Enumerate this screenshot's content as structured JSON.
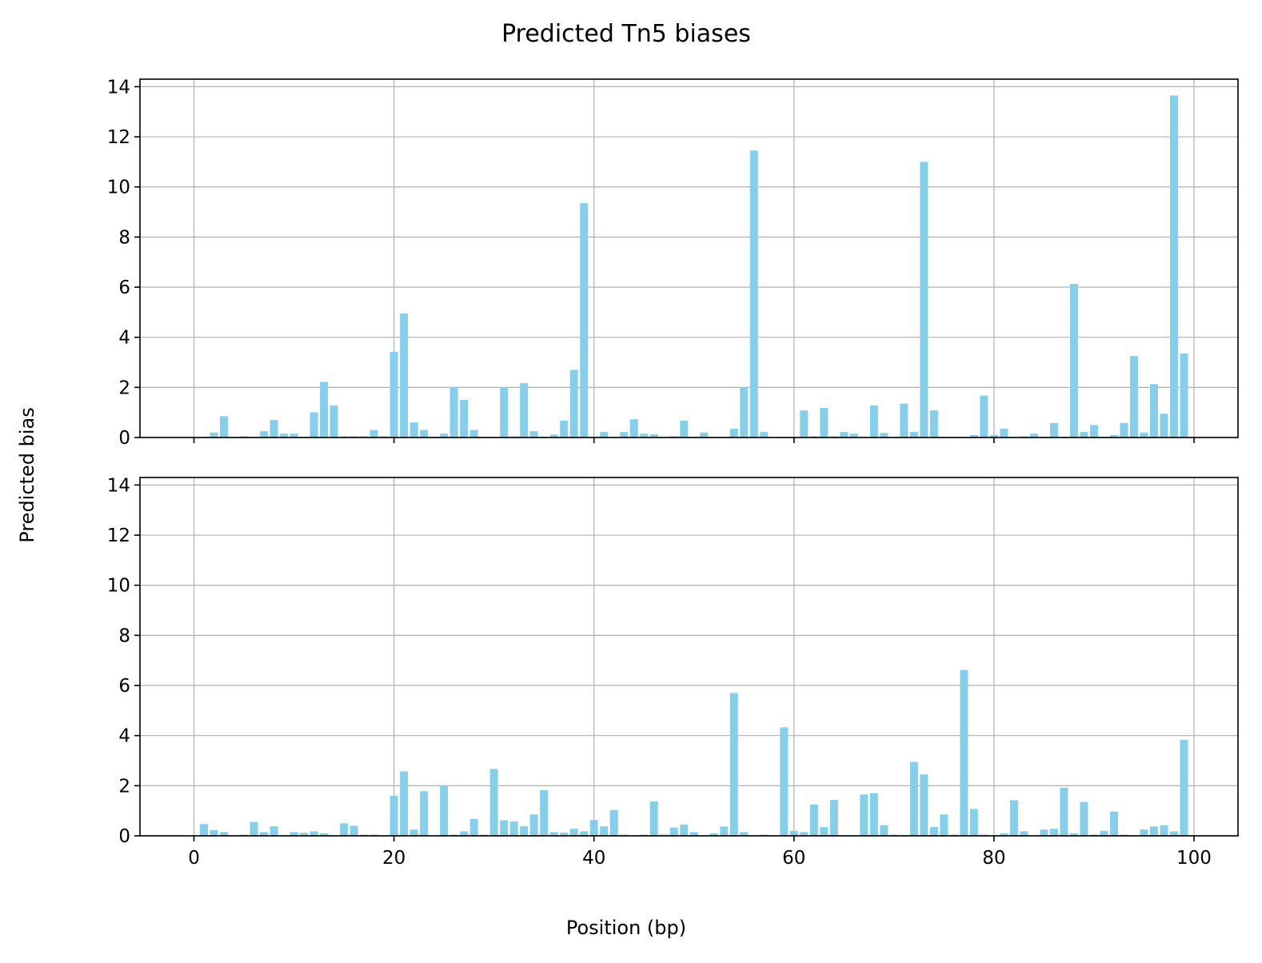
{
  "figure": {
    "title": "Predicted Tn5 biases",
    "xlabel": "Position (bp)",
    "ylabel": "Predicted bias",
    "bar_color": "#87CEEB",
    "grid_color": "#b0b0b0"
  },
  "chart_data": [
    {
      "type": "bar",
      "title": "",
      "xlabel": "",
      "ylabel": "",
      "xlim": [
        -5.4,
        104.4
      ],
      "ylim": [
        0,
        14.3
      ],
      "xticks": [
        0,
        20,
        40,
        60,
        80,
        100
      ],
      "xtick_labels_visible": false,
      "yticks": [
        0,
        2,
        4,
        6,
        8,
        10,
        12,
        14
      ],
      "grid": true,
      "x": [
        0,
        1,
        2,
        3,
        4,
        5,
        6,
        7,
        8,
        9,
        10,
        11,
        12,
        13,
        14,
        15,
        16,
        17,
        18,
        19,
        20,
        21,
        22,
        23,
        24,
        25,
        26,
        27,
        28,
        29,
        30,
        31,
        32,
        33,
        34,
        35,
        36,
        37,
        38,
        39,
        40,
        41,
        42,
        43,
        44,
        45,
        46,
        47,
        48,
        49,
        50,
        51,
        52,
        53,
        54,
        55,
        56,
        57,
        58,
        59,
        60,
        61,
        62,
        63,
        64,
        65,
        66,
        67,
        68,
        69,
        70,
        71,
        72,
        73,
        74,
        75,
        76,
        77,
        78,
        79,
        80,
        81,
        82,
        83,
        84,
        85,
        86,
        87,
        88,
        89,
        90,
        91,
        92,
        93,
        94,
        95,
        96,
        97,
        98,
        99
      ],
      "values": [
        0.02,
        0.03,
        0.2,
        0.85,
        0.02,
        0.05,
        0.03,
        0.25,
        0.7,
        0.15,
        0.15,
        0.03,
        1.0,
        2.22,
        1.28,
        0.05,
        0.05,
        0.05,
        0.3,
        0.05,
        3.42,
        4.95,
        0.6,
        0.3,
        0.03,
        0.15,
        2.0,
        1.5,
        0.3,
        0.03,
        0.03,
        2.0,
        0.05,
        2.17,
        0.25,
        0.03,
        0.12,
        0.67,
        2.7,
        9.35,
        0.03,
        0.22,
        0.03,
        0.22,
        0.73,
        0.15,
        0.13,
        0.03,
        0.05,
        0.67,
        0.03,
        0.2,
        0.03,
        0.03,
        0.35,
        2.0,
        11.45,
        0.22,
        0.03,
        0.03,
        0.03,
        1.08,
        0.05,
        1.18,
        0.05,
        0.22,
        0.15,
        0.03,
        1.28,
        0.18,
        0.03,
        1.35,
        0.22,
        11.0,
        1.08,
        0.03,
        0.03,
        0.03,
        0.1,
        1.67,
        0.1,
        0.35,
        0.03,
        0.05,
        0.15,
        0.03,
        0.58,
        0.03,
        6.13,
        0.22,
        0.5,
        0.03,
        0.1,
        0.58,
        3.25,
        0.2,
        2.13,
        0.95,
        13.65,
        3.35
      ]
    },
    {
      "type": "bar",
      "title": "",
      "xlabel": "Position (bp)",
      "ylabel": "",
      "xlim": [
        -5.4,
        104.4
      ],
      "ylim": [
        0,
        14.3
      ],
      "xticks": [
        0,
        20,
        40,
        60,
        80,
        100
      ],
      "xtick_labels_visible": true,
      "yticks": [
        0,
        2,
        4,
        6,
        8,
        10,
        12,
        14
      ],
      "grid": true,
      "x": [
        0,
        1,
        2,
        3,
        4,
        5,
        6,
        7,
        8,
        9,
        10,
        11,
        12,
        13,
        14,
        15,
        16,
        17,
        18,
        19,
        20,
        21,
        22,
        23,
        24,
        25,
        26,
        27,
        28,
        29,
        30,
        31,
        32,
        33,
        34,
        35,
        36,
        37,
        38,
        39,
        40,
        41,
        42,
        43,
        44,
        45,
        46,
        47,
        48,
        49,
        50,
        51,
        52,
        53,
        54,
        55,
        56,
        57,
        58,
        59,
        60,
        61,
        62,
        63,
        64,
        65,
        66,
        67,
        68,
        69,
        70,
        71,
        72,
        73,
        74,
        75,
        76,
        77,
        78,
        79,
        80,
        81,
        82,
        83,
        84,
        85,
        86,
        87,
        88,
        89,
        90,
        91,
        92,
        93,
        94,
        95,
        96,
        97,
        98,
        99
      ],
      "values": [
        0.02,
        0.47,
        0.23,
        0.15,
        0.03,
        0.05,
        0.55,
        0.15,
        0.38,
        0.03,
        0.15,
        0.12,
        0.18,
        0.1,
        0.03,
        0.5,
        0.4,
        0.05,
        0.05,
        0.03,
        1.6,
        2.57,
        0.25,
        1.78,
        0.03,
        2.0,
        0.05,
        0.18,
        0.67,
        0.05,
        2.67,
        0.62,
        0.57,
        0.38,
        0.85,
        1.82,
        0.15,
        0.13,
        0.28,
        0.18,
        0.63,
        0.38,
        1.03,
        0.05,
        0.03,
        0.05,
        1.37,
        0.05,
        0.33,
        0.45,
        0.15,
        0.03,
        0.1,
        0.37,
        5.7,
        0.15,
        0.03,
        0.05,
        0.03,
        4.33,
        0.2,
        0.15,
        1.25,
        0.35,
        1.43,
        0.03,
        0.03,
        1.65,
        1.7,
        0.42,
        0.05,
        0.03,
        2.95,
        2.45,
        0.35,
        0.85,
        0.05,
        6.62,
        1.07,
        0.05,
        0.03,
        0.1,
        1.42,
        0.18,
        0.03,
        0.25,
        0.28,
        1.92,
        0.1,
        1.35,
        0.05,
        0.2,
        0.97,
        0.05,
        0.03,
        0.25,
        0.37,
        0.42,
        0.18,
        3.83
      ]
    }
  ]
}
